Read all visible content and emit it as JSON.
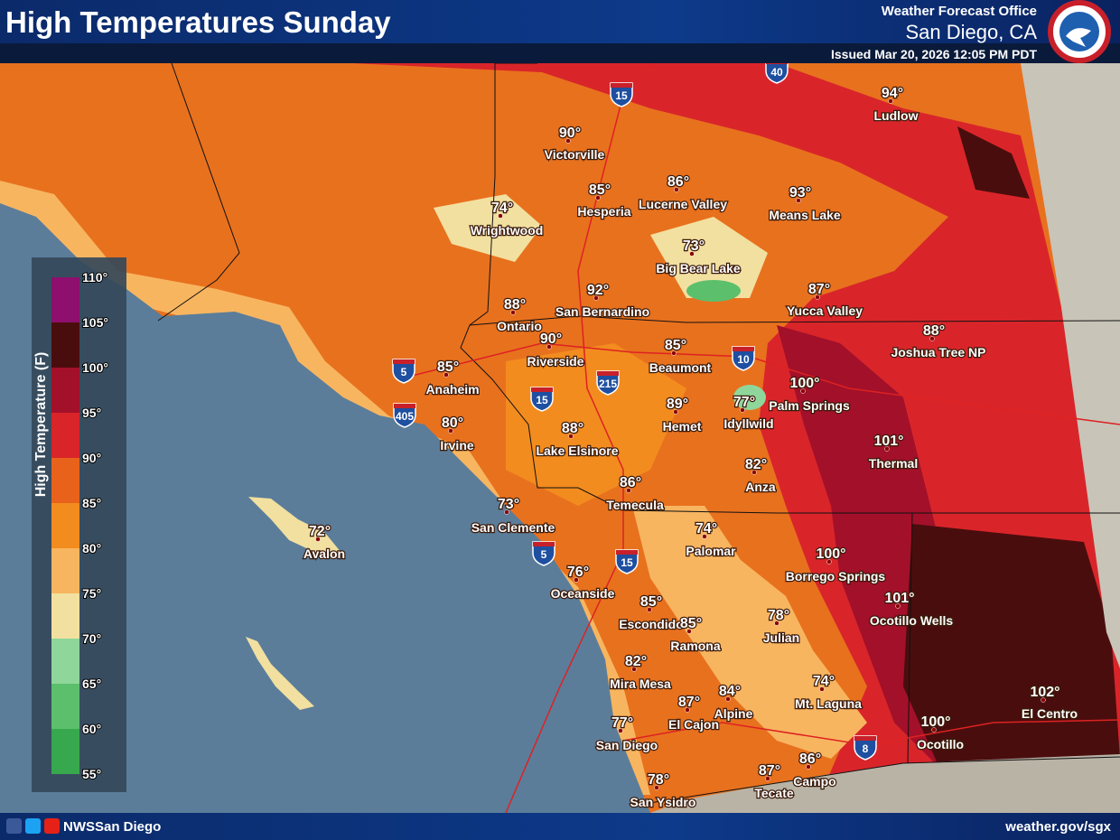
{
  "header": {
    "title": "High Temperatures Sunday",
    "office": "Weather Forecast Office",
    "location": "San Diego, CA",
    "issued": "Issued Mar 20, 2026 12:05 PM PDT"
  },
  "legend": {
    "title": "High Temperature (F)",
    "ticks": [
      "110°",
      "105°",
      "100°",
      "95°",
      "90°",
      "85°",
      "80°",
      "75°",
      "70°",
      "65°",
      "60°",
      "55°"
    ],
    "colors": [
      "#8e0f6e",
      "#4a0d0d",
      "#a3102a",
      "#d9242a",
      "#e8621c",
      "#f28c1e",
      "#f8b560",
      "#f2e0a0",
      "#8fd69a",
      "#5cbf6c",
      "#38a84e"
    ]
  },
  "cities": [
    {
      "name": "Ludlow",
      "temp": "94°"
    },
    {
      "name": "Victorville",
      "temp": "90°"
    },
    {
      "name": "Hesperia",
      "temp": "85°"
    },
    {
      "name": "Lucerne Valley",
      "temp": "86°"
    },
    {
      "name": "Means Lake",
      "temp": "93°"
    },
    {
      "name": "Wrightwood",
      "temp": "74°"
    },
    {
      "name": "Big Bear Lake",
      "temp": "73°"
    },
    {
      "name": "Yucca Valley",
      "temp": "87°"
    },
    {
      "name": "Ontario",
      "temp": "88°"
    },
    {
      "name": "San Bernardino",
      "temp": "92°"
    },
    {
      "name": "Joshua Tree NP",
      "temp": "88°"
    },
    {
      "name": "Riverside",
      "temp": "90°"
    },
    {
      "name": "Beaumont",
      "temp": "85°"
    },
    {
      "name": "Palm Springs",
      "temp": "100°"
    },
    {
      "name": "Anaheim",
      "temp": "85°"
    },
    {
      "name": "Hemet",
      "temp": "89°"
    },
    {
      "name": "Idyllwild",
      "temp": "77°"
    },
    {
      "name": "Irvine",
      "temp": "80°"
    },
    {
      "name": "Lake Elsinore",
      "temp": "88°"
    },
    {
      "name": "Thermal",
      "temp": "101°"
    },
    {
      "name": "Anza",
      "temp": "82°"
    },
    {
      "name": "Temecula",
      "temp": "86°"
    },
    {
      "name": "San Clemente",
      "temp": "73°"
    },
    {
      "name": "Avalon",
      "temp": "72°"
    },
    {
      "name": "Palomar",
      "temp": "74°"
    },
    {
      "name": "Borrego Springs",
      "temp": "100°"
    },
    {
      "name": "Oceanside",
      "temp": "76°"
    },
    {
      "name": "Ocotillo Wells",
      "temp": "101°"
    },
    {
      "name": "Escondido",
      "temp": "85°"
    },
    {
      "name": "Julian",
      "temp": "78°"
    },
    {
      "name": "Ramona",
      "temp": "85°"
    },
    {
      "name": "Mira Mesa",
      "temp": "82°"
    },
    {
      "name": "Mt. Laguna",
      "temp": "74°"
    },
    {
      "name": "Alpine",
      "temp": "84°"
    },
    {
      "name": "El Cajon",
      "temp": "87°"
    },
    {
      "name": "El Centro",
      "temp": "102°"
    },
    {
      "name": "San Diego",
      "temp": "77°"
    },
    {
      "name": "Ocotillo",
      "temp": "100°"
    },
    {
      "name": "Campo",
      "temp": "86°"
    },
    {
      "name": "Tecate",
      "temp": "87°"
    },
    {
      "name": "San Ysidro",
      "temp": "78°"
    }
  ],
  "highways": [
    "40",
    "15",
    "5",
    "405",
    "15",
    "215",
    "10",
    "5",
    "15",
    "8"
  ],
  "footer": {
    "handle": "NWSSan Diego",
    "url": "weather.gov/sgx"
  }
}
